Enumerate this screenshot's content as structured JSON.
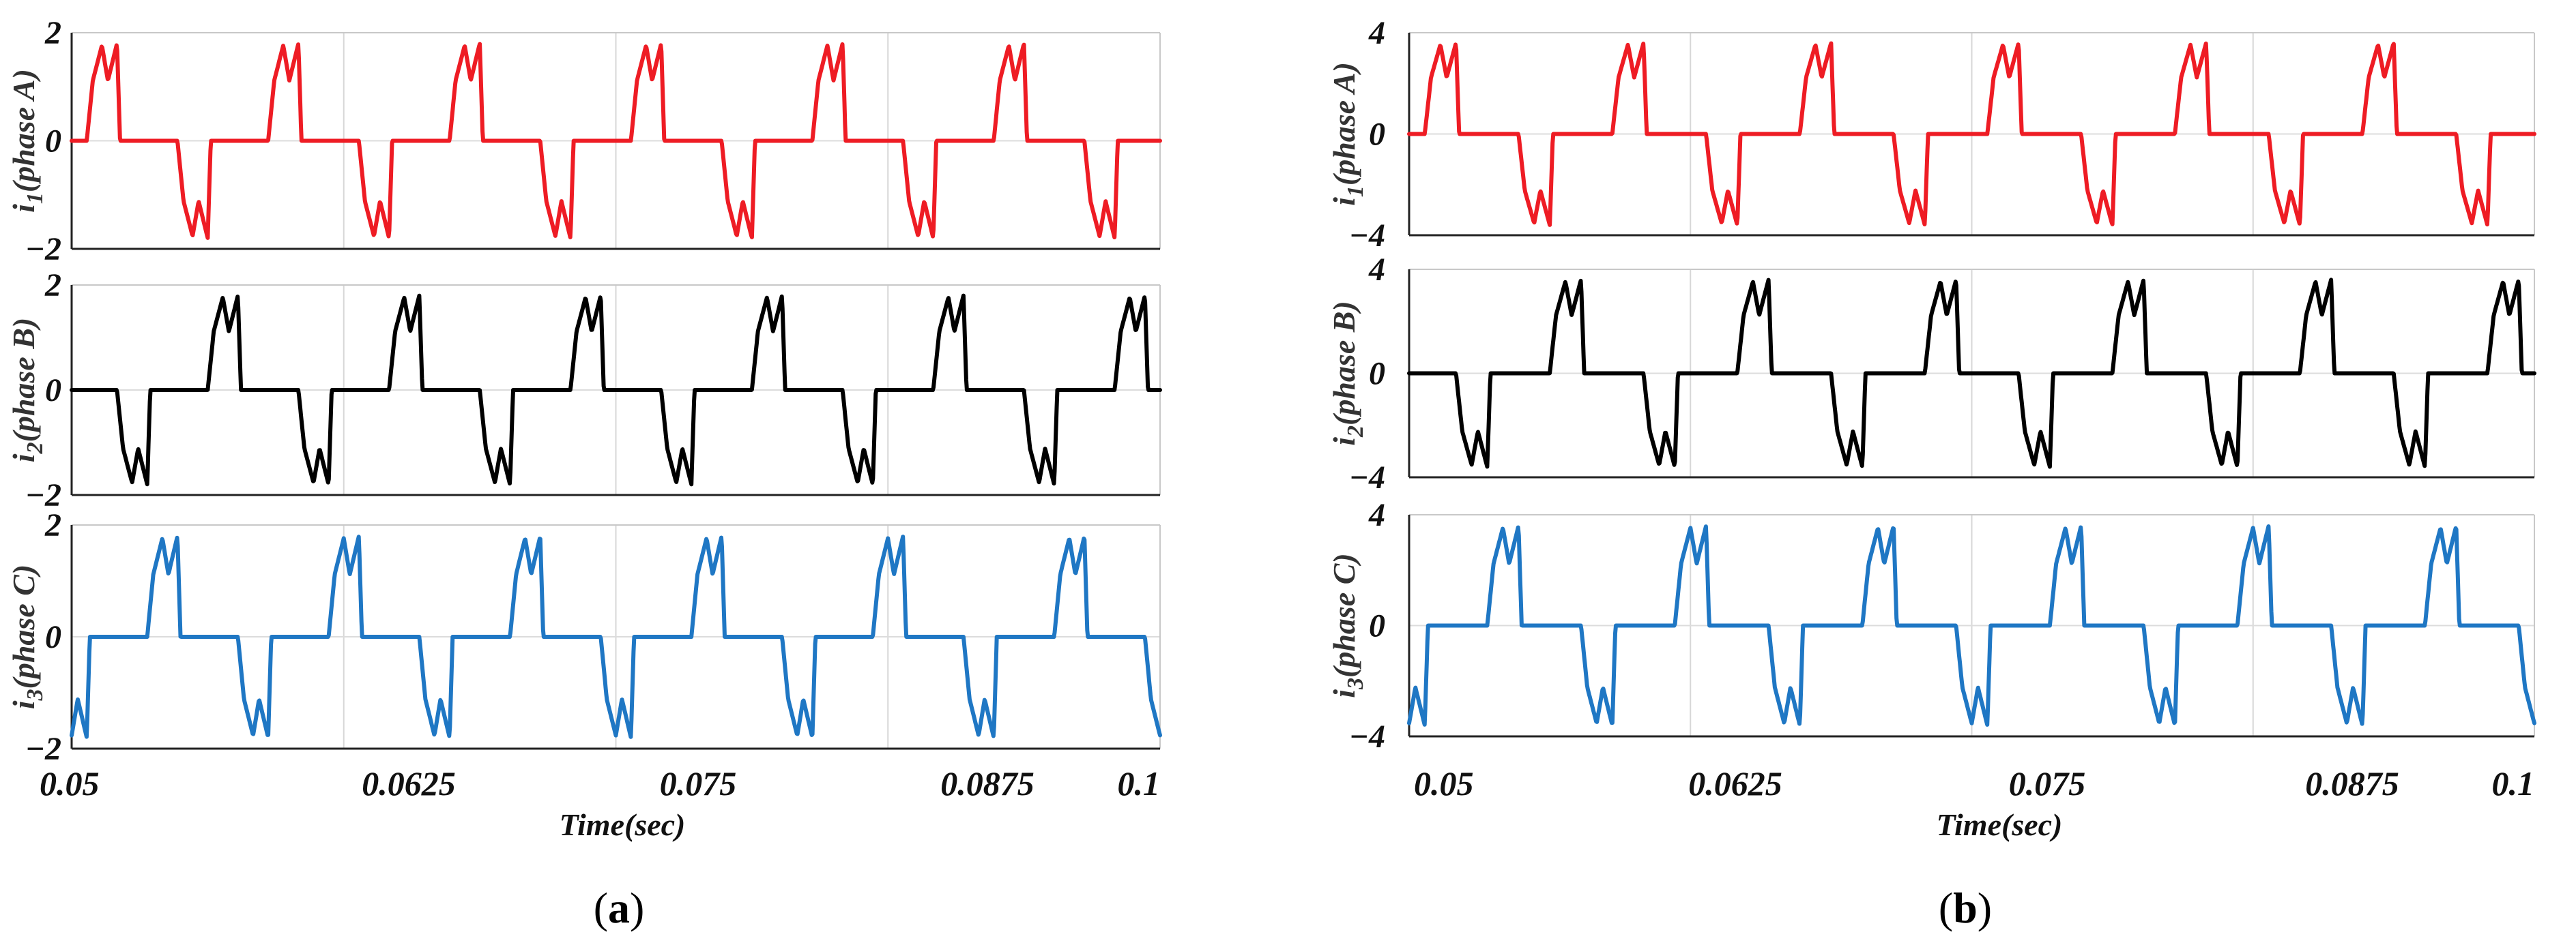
{
  "figure": {
    "panels": [
      {
        "id": "a",
        "caption_open": "(",
        "caption_letter": "a",
        "caption_close": ")",
        "xlabel": "Time(sec)",
        "x_ticks": [
          "0.05",
          "0.0625",
          "0.075",
          "0.0875",
          "0.1"
        ]
      },
      {
        "id": "b",
        "caption_open": "(",
        "caption_letter": "b",
        "caption_close": ")",
        "xlabel": "Time(sec)",
        "x_ticks": [
          "0.05",
          "0.0625",
          "0.075",
          "0.0875",
          "0.1"
        ]
      }
    ]
  },
  "chart_data": [
    {
      "type": "line",
      "panel": "a",
      "subplot": 1,
      "title": "",
      "ylabel_main": "i",
      "ylabel_sub": "1",
      "ylabel_rest": "(phase A)",
      "xlabel": "",
      "xlim": [
        0.05,
        0.1
      ],
      "ylim": [
        -2,
        2
      ],
      "yticks": [
        2,
        0,
        -2
      ],
      "ytick_labels": [
        "2",
        "0",
        "−2"
      ],
      "xgrid": [
        0.0625,
        0.075,
        0.0875
      ],
      "color": "#ee1c24",
      "peak": 1.8,
      "period": 0.008333,
      "phase_offset": 0.0,
      "waveform_template": {
        "u": [
          0,
          0.0833,
          0.1167,
          0.1667,
          0.2,
          0.25,
          0.2667,
          0.3333,
          0.4167
        ],
        "y_frac": [
          0,
          0,
          0.62,
          0.98,
          0.62,
          1.0,
          0,
          0,
          0
        ]
      },
      "series": [
        {
          "name": "i1 (phase A)"
        }
      ]
    },
    {
      "type": "line",
      "panel": "a",
      "subplot": 2,
      "title": "",
      "ylabel_main": "i",
      "ylabel_sub": "2",
      "ylabel_rest": "(phase B)",
      "xlabel": "",
      "xlim": [
        0.05,
        0.1
      ],
      "ylim": [
        -2,
        2
      ],
      "yticks": [
        2,
        0,
        -2
      ],
      "ytick_labels": [
        "2",
        "0",
        "−2"
      ],
      "xgrid": [
        0.0625,
        0.075,
        0.0875
      ],
      "color": "#000000",
      "peak": 1.8,
      "period": 0.008333,
      "phase_offset": -0.002778,
      "waveform_template": {
        "u": [
          0,
          0.0833,
          0.1167,
          0.1667,
          0.2,
          0.25,
          0.2667,
          0.3333,
          0.4167
        ],
        "y_frac": [
          0,
          0,
          0.62,
          0.98,
          0.62,
          1.0,
          0,
          0,
          0
        ]
      },
      "series": [
        {
          "name": "i2 (phase B)"
        }
      ]
    },
    {
      "type": "line",
      "panel": "a",
      "subplot": 3,
      "title": "",
      "ylabel_main": "i",
      "ylabel_sub": "3",
      "ylabel_rest": "(phase C)",
      "xlabel": "Time(sec)",
      "xlim": [
        0.05,
        0.1
      ],
      "ylim": [
        -2,
        2
      ],
      "yticks": [
        2,
        0,
        -2
      ],
      "ytick_labels": [
        "2",
        "0",
        "−2"
      ],
      "xgrid": [
        0.0625,
        0.075,
        0.0875
      ],
      "color": "#1f77c4",
      "peak": 1.8,
      "period": 0.008333,
      "phase_offset": 0.002778,
      "waveform_template": {
        "u": [
          0,
          0.0833,
          0.1167,
          0.1667,
          0.2,
          0.25,
          0.2667,
          0.3333,
          0.4167
        ],
        "y_frac": [
          0,
          0,
          0.62,
          0.98,
          0.62,
          1.0,
          0,
          0,
          0
        ]
      },
      "series": [
        {
          "name": "i3 (phase C)"
        }
      ]
    },
    {
      "type": "line",
      "panel": "b",
      "subplot": 1,
      "title": "",
      "ylabel_main": "i",
      "ylabel_sub": "1",
      "ylabel_rest": "(phase A)",
      "xlabel": "",
      "xlim": [
        0.05,
        0.1
      ],
      "ylim": [
        -4,
        4
      ],
      "yticks": [
        4,
        0,
        -4
      ],
      "ytick_labels": [
        "4",
        "0",
        "−4"
      ],
      "xgrid": [
        0.0625,
        0.075,
        0.0875
      ],
      "color": "#ee1c24",
      "peak": 3.6,
      "period": 0.008333,
      "phase_offset": 0.0,
      "waveform_template": {
        "u": [
          0,
          0.0833,
          0.1167,
          0.1667,
          0.2,
          0.25,
          0.2667,
          0.3333,
          0.4167
        ],
        "y_frac": [
          0,
          0,
          0.62,
          0.98,
          0.62,
          1.0,
          0,
          0,
          0
        ]
      },
      "series": [
        {
          "name": "i1 (phase A)"
        }
      ]
    },
    {
      "type": "line",
      "panel": "b",
      "subplot": 2,
      "title": "",
      "ylabel_main": "i",
      "ylabel_sub": "2",
      "ylabel_rest": "(phase B)",
      "xlabel": "",
      "xlim": [
        0.05,
        0.1
      ],
      "ylim": [
        -4,
        4
      ],
      "yticks": [
        4,
        0,
        -4
      ],
      "ytick_labels": [
        "4",
        "0",
        "−4"
      ],
      "xgrid": [
        0.0625,
        0.075,
        0.0875
      ],
      "color": "#000000",
      "peak": 3.6,
      "period": 0.008333,
      "phase_offset": -0.002778,
      "waveform_template": {
        "u": [
          0,
          0.0833,
          0.1167,
          0.1667,
          0.2,
          0.25,
          0.2667,
          0.3333,
          0.4167
        ],
        "y_frac": [
          0,
          0,
          0.62,
          0.98,
          0.62,
          1.0,
          0,
          0,
          0
        ]
      },
      "series": [
        {
          "name": "i2 (phase B)"
        }
      ]
    },
    {
      "type": "line",
      "panel": "b",
      "subplot": 3,
      "title": "",
      "ylabel_main": "i",
      "ylabel_sub": "3",
      "ylabel_rest": "(phase C)",
      "xlabel": "Time(sec)",
      "xlim": [
        0.05,
        0.1
      ],
      "ylim": [
        -4,
        4
      ],
      "yticks": [
        4,
        0,
        -4
      ],
      "ytick_labels": [
        "4",
        "0",
        "−4"
      ],
      "xgrid": [
        0.0625,
        0.075,
        0.0875
      ],
      "color": "#1f77c4",
      "peak": 3.6,
      "period": 0.008333,
      "phase_offset": 0.002778,
      "waveform_template": {
        "u": [
          0,
          0.0833,
          0.1167,
          0.1667,
          0.2,
          0.25,
          0.2667,
          0.3333,
          0.4167
        ],
        "y_frac": [
          0,
          0,
          0.62,
          0.98,
          0.62,
          1.0,
          0,
          0,
          0
        ]
      },
      "series": [
        {
          "name": "i3 (phase C)"
        }
      ]
    }
  ]
}
